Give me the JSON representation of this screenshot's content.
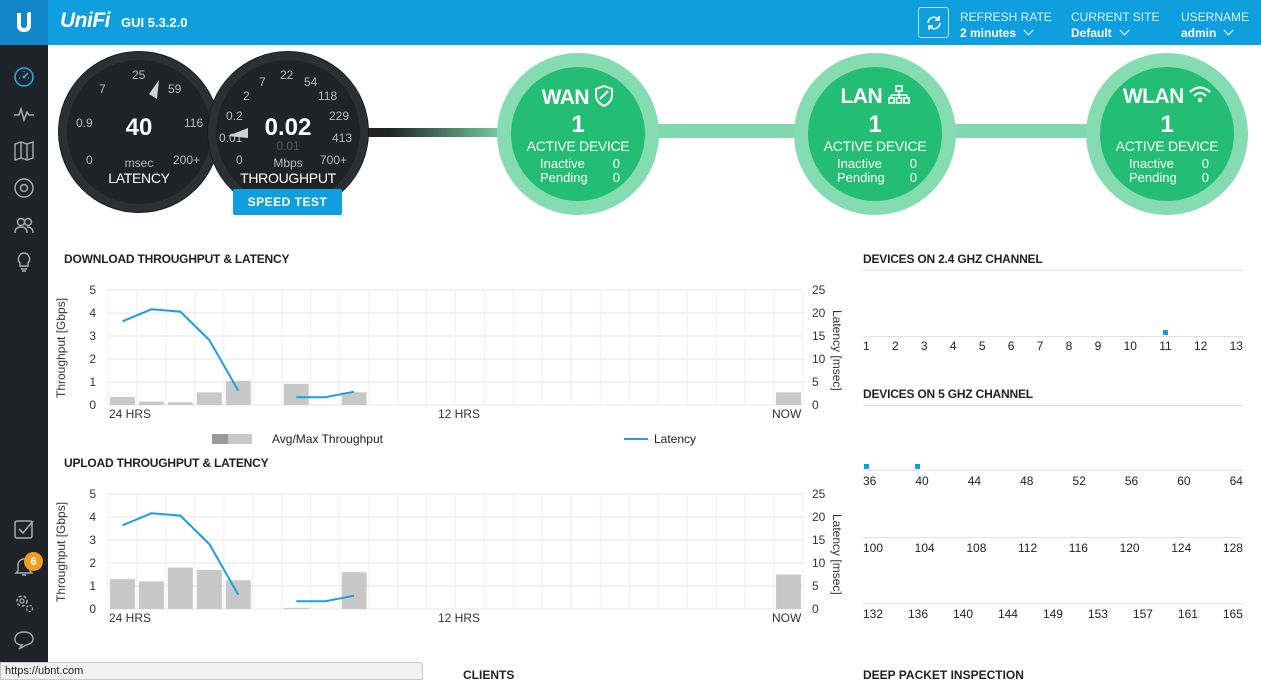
{
  "header": {
    "brand": "UniFi",
    "version": "GUI 5.3.2.0",
    "refresh_rate_label": "REFRESH RATE",
    "refresh_rate_value": "2 minutes",
    "current_site_label": "CURRENT SITE",
    "current_site_value": "Default",
    "username_label": "USERNAME",
    "username_value": "admin"
  },
  "sidebar": {
    "icons": [
      "dashboard-icon",
      "statistics-icon",
      "map-icon",
      "devices-icon",
      "clients-icon",
      "insights-icon",
      "events-icon",
      "alerts-icon",
      "settings-icon",
      "chat-icon"
    ],
    "alert_count": "6"
  },
  "latency_gauge": {
    "ticks": [
      "25",
      "59",
      "7",
      "116",
      "0.9",
      "0",
      "200+"
    ],
    "value": "40",
    "unit": "msec",
    "label": "LATENCY"
  },
  "throughput_gauge": {
    "ticks": [
      "7",
      "22",
      "54",
      "2",
      "118",
      "0.2",
      "229",
      "0.01",
      "413",
      "0",
      "700+"
    ],
    "value": "0.02",
    "value_shadow": "0.01",
    "unit": "Mbps",
    "label": "THROUGHPUT",
    "speed_test_label": "SPEED TEST"
  },
  "status": [
    {
      "name": "WAN",
      "count": "1",
      "active_label": "ACTIVE DEVICE",
      "inactive_label": "Inactive",
      "inactive": "0",
      "pending_label": "Pending",
      "pending": "0"
    },
    {
      "name": "LAN",
      "count": "1",
      "active_label": "ACTIVE DEVICE",
      "inactive_label": "Inactive",
      "inactive": "0",
      "pending_label": "Pending",
      "pending": "0"
    },
    {
      "name": "WLAN",
      "count": "1",
      "active_label": "ACTIVE DEVICE",
      "inactive_label": "Inactive",
      "inactive": "0",
      "pending_label": "Pending",
      "pending": "0"
    }
  ],
  "download": {
    "title": "DOWNLOAD THROUGHPUT & LATENCY",
    "y_left_label": "Throughput [Gbps]",
    "y_right_label": "Latency [msec]",
    "y_left_ticks": [
      "5",
      "4",
      "3",
      "2",
      "1",
      "0"
    ],
    "y_right_ticks": [
      "25",
      "20",
      "15",
      "10",
      "5",
      "0"
    ],
    "x_labels": [
      "24 HRS",
      "12 HRS",
      "NOW"
    ]
  },
  "upload": {
    "title": "UPLOAD THROUGHPUT & LATENCY",
    "y_left_label": "Throughput [Gbps]",
    "y_right_label": "Latency [msec]",
    "y_left_ticks": [
      "5",
      "4",
      "3",
      "2",
      "1",
      "0"
    ],
    "y_right_ticks": [
      "25",
      "20",
      "15",
      "10",
      "5",
      "0"
    ],
    "x_labels": [
      "24 HRS",
      "12 HRS",
      "NOW"
    ]
  },
  "legend": {
    "throughput": "Avg/Max Throughput",
    "latency": "Latency"
  },
  "chart_data": [
    {
      "type": "bar",
      "title": "DOWNLOAD THROUGHPUT & LATENCY",
      "ylabel": "Throughput [Gbps]",
      "y2label": "Latency [msec]",
      "ylim": [
        0,
        5
      ],
      "y2lim": [
        0,
        25
      ],
      "slots": 24,
      "series": [
        {
          "name": "Avg/Max Throughput",
          "values": [
            0.35,
            0.15,
            0.12,
            0.55,
            1.05,
            null,
            0.92,
            null,
            0.55,
            null,
            null,
            null,
            null,
            null,
            null,
            null,
            null,
            null,
            null,
            null,
            null,
            null,
            null,
            0.55
          ]
        },
        {
          "name": "Latency",
          "values": [
            18.2,
            20.8,
            20.3,
            14.1,
            3.1,
            null,
            1.7,
            1.7,
            2.9,
            null,
            null,
            null,
            null,
            null,
            null,
            null,
            null,
            null,
            null,
            null,
            null,
            null,
            null,
            null
          ]
        }
      ]
    },
    {
      "type": "bar",
      "title": "UPLOAD THROUGHPUT & LATENCY",
      "ylabel": "Throughput [Gbps]",
      "y2label": "Latency [msec]",
      "ylim": [
        0,
        5
      ],
      "y2lim": [
        0,
        25
      ],
      "slots": 24,
      "series": [
        {
          "name": "Avg/Max Throughput",
          "values": [
            1.3,
            1.2,
            1.8,
            1.7,
            1.25,
            null,
            0.05,
            null,
            1.6,
            null,
            null,
            null,
            null,
            null,
            null,
            null,
            null,
            null,
            null,
            null,
            null,
            null,
            null,
            1.5
          ]
        },
        {
          "name": "Latency",
          "values": [
            18.2,
            20.8,
            20.3,
            14.1,
            3.1,
            null,
            1.7,
            1.7,
            2.9,
            null,
            null,
            null,
            null,
            null,
            null,
            null,
            null,
            null,
            null,
            null,
            null,
            null,
            null,
            null
          ]
        }
      ]
    }
  ],
  "channels_24": {
    "title": "DEVICES ON 2.4 GHZ CHANNEL",
    "channels": [
      "1",
      "2",
      "3",
      "4",
      "5",
      "6",
      "7",
      "8",
      "9",
      "10",
      "11",
      "12",
      "13"
    ],
    "active": [
      "11"
    ]
  },
  "channels_5": {
    "title": "DEVICES ON 5 GHZ CHANNEL",
    "row1": [
      "36",
      "40",
      "44",
      "48",
      "52",
      "56",
      "60",
      "64"
    ],
    "row2": [
      "100",
      "104",
      "108",
      "112",
      "116",
      "120",
      "124",
      "128"
    ],
    "row3": [
      "132",
      "136",
      "140",
      "144",
      "149",
      "153",
      "157",
      "161",
      "165"
    ],
    "active": [
      "36",
      "40"
    ]
  },
  "bottom": {
    "status_url": "https://ubnt.com",
    "clients_title": "CLIENTS",
    "dpi_title": "DEEP PACKET INSPECTION"
  },
  "colors": {
    "accent": "#0f9ede",
    "sidebar": "#1d2329",
    "status_green": "#23be73",
    "status_ring": "#85dcb0",
    "gauge_dark": "#1f2326",
    "bar_gray": "#c8c8c8",
    "latency_line": "#1a9fe0"
  }
}
